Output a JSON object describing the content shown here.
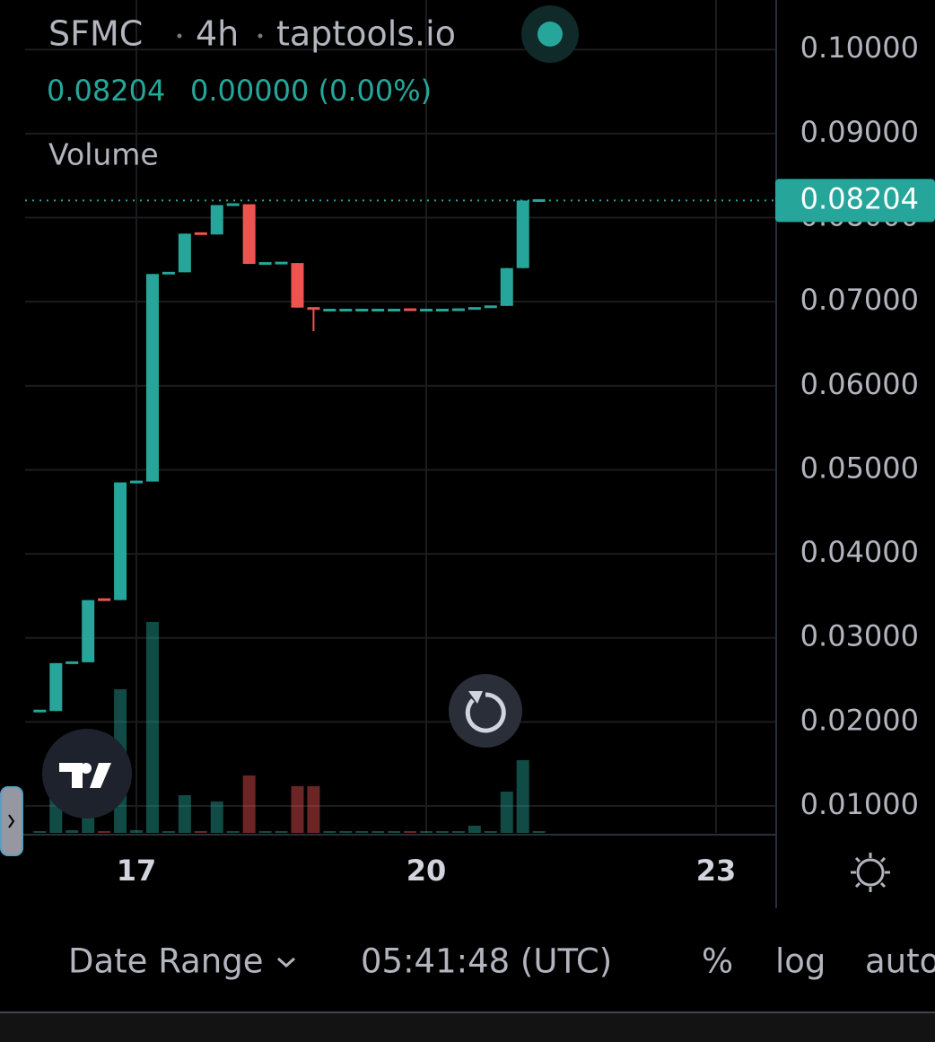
{
  "chart_data": {
    "type": "candlestick",
    "symbol": "SFMC",
    "interval": "4h",
    "source": "taptools.io",
    "last": 0.08204,
    "change": "0.00000 (0.00%)",
    "volume_label": "Volume",
    "up_color": "#26a69a",
    "down_color": "#ef5350",
    "grid": true,
    "x": [
      16,
      16.1667,
      16.3333,
      16.5,
      16.6667,
      16.8333,
      17,
      17.1667,
      17.3333,
      17.5,
      17.6667,
      17.8333,
      18,
      18.1667,
      18.3333,
      18.5,
      18.6667,
      18.8333,
      19,
      19.1667,
      19.3333,
      19.5,
      19.6667,
      19.8333,
      20,
      20.1667,
      20.3333,
      20.5,
      20.6667,
      20.8333,
      21,
      21.1667
    ],
    "open": [
      0.0213,
      0.0213,
      0.027,
      0.0271,
      0.0346,
      0.0345,
      0.0485,
      0.0486,
      0.0733,
      0.0735,
      0.0782,
      0.078,
      0.0815,
      0.0816,
      0.0745,
      0.0746,
      0.0746,
      0.0693,
      0.069,
      0.069,
      0.069,
      0.069,
      0.069,
      0.0691,
      0.069,
      0.069,
      0.069,
      0.0691,
      0.0693,
      0.0695,
      0.074,
      0.08204
    ],
    "high": [
      0.0213,
      0.027,
      0.0271,
      0.0345,
      0.0346,
      0.0485,
      0.0486,
      0.0733,
      0.0735,
      0.0781,
      0.0782,
      0.0815,
      0.0816,
      0.0816,
      0.0746,
      0.0746,
      0.0746,
      0.0693,
      0.069,
      0.069,
      0.069,
      0.069,
      0.069,
      0.0691,
      0.069,
      0.069,
      0.0691,
      0.0693,
      0.0695,
      0.074,
      0.08204,
      0.08204
    ],
    "low": [
      0.0213,
      0.0213,
      0.027,
      0.0271,
      0.0345,
      0.0345,
      0.0485,
      0.0486,
      0.0733,
      0.0735,
      0.078,
      0.078,
      0.0815,
      0.0745,
      0.0745,
      0.0746,
      0.0693,
      0.0665,
      0.069,
      0.069,
      0.069,
      0.069,
      0.069,
      0.069,
      0.069,
      0.069,
      0.069,
      0.0691,
      0.0693,
      0.0695,
      0.074,
      0.08204
    ],
    "close": [
      0.0213,
      0.027,
      0.0271,
      0.0345,
      0.0345,
      0.0485,
      0.0486,
      0.0733,
      0.0735,
      0.0781,
      0.078,
      0.0815,
      0.0816,
      0.0745,
      0.0746,
      0.0746,
      0.0693,
      0.0691,
      0.069,
      0.069,
      0.069,
      0.069,
      0.069,
      0.069,
      0.069,
      0.069,
      0.0691,
      0.0693,
      0.0695,
      0.074,
      0.08204,
      0.08204
    ],
    "volume": [
      2,
      40,
      3,
      20,
      2,
      160,
      3,
      235,
      2,
      42,
      2,
      35,
      2,
      64,
      2,
      2,
      52,
      52,
      2,
      2,
      2,
      2,
      2,
      2,
      2,
      2,
      2,
      8,
      2,
      46,
      81,
      2
    ],
    "ylim": [
      0.0068,
      0.1059
    ],
    "yticks": [
      {
        "value": 0.01,
        "label": "0.01000"
      },
      {
        "value": 0.02,
        "label": "0.02000"
      },
      {
        "value": 0.03,
        "label": "0.03000"
      },
      {
        "value": 0.04,
        "label": "0.04000"
      },
      {
        "value": 0.05,
        "label": "0.05000"
      },
      {
        "value": 0.06,
        "label": "0.06000"
      },
      {
        "value": 0.07,
        "label": "0.07000"
      },
      {
        "value": 0.08,
        "label": "0.08000"
      },
      {
        "value": 0.09,
        "label": "0.09000"
      },
      {
        "value": 0.1,
        "label": "0.10000"
      }
    ],
    "xlim": [
      15.848,
      23.622
    ],
    "xticks": [
      17,
      20,
      23
    ]
  },
  "toolbar": {
    "date_range": "Date Range",
    "time": "05:41:48 (UTC)",
    "percent": "%",
    "log": "log",
    "auto": "auto"
  }
}
